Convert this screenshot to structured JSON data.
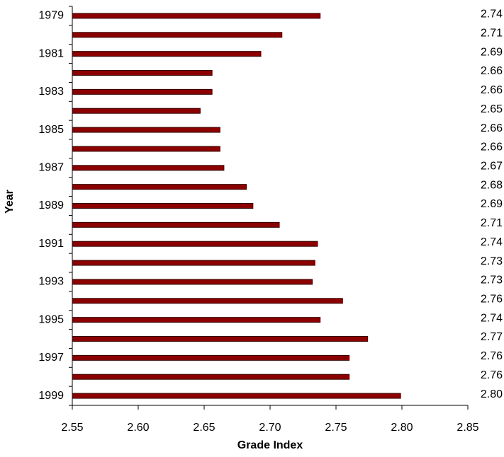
{
  "chart_data": {
    "type": "bar",
    "orientation": "horizontal",
    "xlabel": "Grade Index",
    "ylabel": "Year",
    "categories": [
      "1979",
      null,
      "1981",
      null,
      "1983",
      null,
      "1985",
      null,
      "1987",
      null,
      "1989",
      null,
      "1991",
      null,
      "1993",
      null,
      "1995",
      null,
      "1997",
      null,
      "1999"
    ],
    "values": [
      2.738,
      2.709,
      2.693,
      2.656,
      2.656,
      2.647,
      2.662,
      2.662,
      2.665,
      2.682,
      2.687,
      2.707,
      2.736,
      2.734,
      2.732,
      2.755,
      2.738,
      2.774,
      2.76,
      2.76,
      2.799
    ],
    "value_labels": [
      "2.74",
      "2.71",
      "2.69",
      "2.66",
      "2.66",
      "2.65",
      "2.66",
      "2.66",
      "2.67",
      "2.68",
      "2.69",
      "2.71",
      "2.74",
      "2.73",
      "2.73",
      "2.76",
      "2.74",
      "2.77",
      "2.76",
      "2.76",
      "2.80"
    ],
    "color": "#8b0000",
    "xlim": [
      2.55,
      2.85
    ],
    "xticks": [
      2.55,
      {
        "value": 2.6,
        "label": "2.60"
      },
      2.65,
      {
        "value": 2.7,
        "label": "2.70"
      },
      2.75,
      {
        "value": 2.8,
        "label": "2.80"
      },
      2.85
    ]
  }
}
